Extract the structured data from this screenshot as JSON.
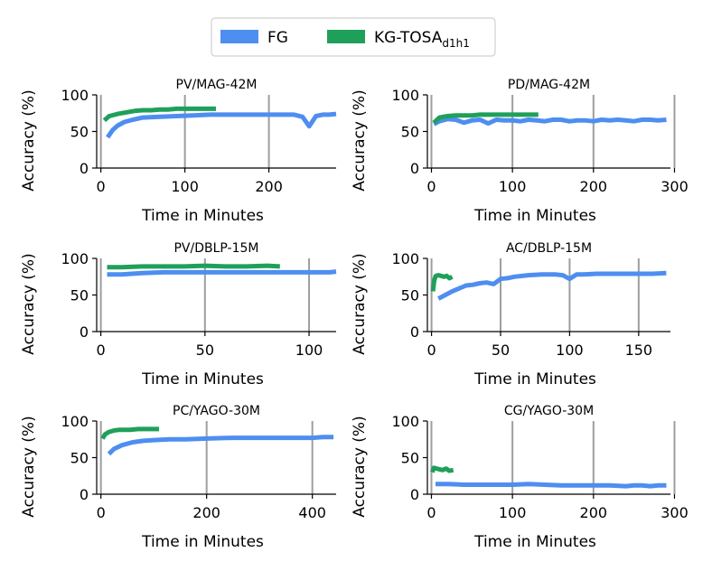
{
  "legend": {
    "fg_label": "FG",
    "kg_label": "KG-TOSA",
    "kg_label_sub": "d1h1",
    "fg_color": "#4e8ef0",
    "kg_color": "#1fa05a"
  },
  "chart_data": [
    {
      "type": "line",
      "title": "PV/MAG-42M",
      "xlabel": "Time in Minutes",
      "ylabel": "Accuracy (%)",
      "xlim": [
        -5,
        280
      ],
      "ylim": [
        0,
        100
      ],
      "xticks": [
        0,
        100,
        200
      ],
      "yticks": [
        0,
        50,
        100
      ],
      "grid": "vertical",
      "series": [
        {
          "name": "FG",
          "x": [
            8,
            14,
            20,
            28,
            38,
            50,
            70,
            90,
            110,
            130,
            150,
            170,
            190,
            210,
            230,
            240,
            248,
            256,
            264,
            272,
            280
          ],
          "y": [
            42,
            52,
            58,
            63,
            66,
            69,
            70,
            71,
            72,
            73,
            73,
            73,
            73,
            73,
            73,
            70,
            57,
            71,
            73,
            73,
            74
          ]
        },
        {
          "name": "KG-TOSA",
          "x": [
            4,
            10,
            20,
            30,
            40,
            50,
            60,
            70,
            80,
            90,
            100,
            110,
            120,
            130,
            137
          ],
          "y": [
            65,
            71,
            74,
            76,
            78,
            79,
            79,
            80,
            80,
            81,
            81,
            81,
            81,
            81,
            81
          ]
        }
      ]
    },
    {
      "type": "line",
      "title": "PD/MAG-42M",
      "xlabel": "Time in Minutes",
      "ylabel": "Accuracy (%)",
      "xlim": [
        -5,
        295
      ],
      "ylim": [
        0,
        100
      ],
      "xticks": [
        0,
        100,
        200,
        300
      ],
      "yticks": [
        0,
        50,
        100
      ],
      "grid": "vertical",
      "series": [
        {
          "name": "FG",
          "x": [
            3,
            10,
            20,
            30,
            40,
            50,
            60,
            70,
            80,
            90,
            100,
            110,
            120,
            130,
            140,
            150,
            160,
            170,
            180,
            190,
            200,
            210,
            220,
            230,
            240,
            250,
            260,
            270,
            280,
            290
          ],
          "y": [
            60,
            64,
            67,
            66,
            62,
            65,
            66,
            61,
            66,
            65,
            65,
            64,
            66,
            65,
            64,
            66,
            66,
            64,
            65,
            65,
            64,
            66,
            65,
            66,
            65,
            64,
            66,
            66,
            65,
            66
          ]
        },
        {
          "name": "KG-TOSA",
          "x": [
            3,
            10,
            20,
            30,
            40,
            50,
            60,
            70,
            80,
            90,
            100,
            110,
            120,
            132
          ],
          "y": [
            62,
            69,
            71,
            72,
            72,
            72,
            73,
            73,
            73,
            73,
            73,
            73,
            73,
            73
          ]
        }
      ]
    },
    {
      "type": "line",
      "title": "PV/DBLP-15M",
      "xlabel": "Time in Minutes",
      "ylabel": "Accuracy (%)",
      "xlim": [
        -2,
        113
      ],
      "ylim": [
        0,
        100
      ],
      "xticks": [
        0,
        50,
        100
      ],
      "yticks": [
        0,
        50,
        100
      ],
      "grid": "vertical",
      "series": [
        {
          "name": "FG",
          "x": [
            3,
            10,
            20,
            30,
            40,
            50,
            60,
            70,
            80,
            90,
            100,
            110,
            113
          ],
          "y": [
            78,
            78,
            80,
            81,
            81,
            81,
            81,
            81,
            81,
            81,
            81,
            81,
            82
          ]
        },
        {
          "name": "KG-TOSA",
          "x": [
            3,
            10,
            20,
            30,
            40,
            50,
            60,
            70,
            80,
            86
          ],
          "y": [
            88,
            88,
            89,
            89,
            89,
            90,
            89,
            89,
            90,
            89
          ]
        }
      ]
    },
    {
      "type": "line",
      "title": "AC/DBLP-15M",
      "xlabel": "Time in Minutes",
      "ylabel": "Accuracy (%)",
      "xlim": [
        -3,
        173
      ],
      "ylim": [
        0,
        100
      ],
      "xticks": [
        0,
        50,
        100,
        150
      ],
      "yticks": [
        0,
        50,
        100
      ],
      "grid": "vertical",
      "series": [
        {
          "name": "FG",
          "x": [
            5,
            10,
            15,
            20,
            25,
            30,
            35,
            40,
            45,
            50,
            55,
            60,
            70,
            80,
            90,
            95,
            100,
            105,
            110,
            120,
            130,
            140,
            150,
            160,
            170
          ],
          "y": [
            45,
            50,
            55,
            59,
            63,
            64,
            66,
            67,
            65,
            72,
            73,
            75,
            77,
            78,
            78,
            77,
            72,
            78,
            78,
            79,
            79,
            79,
            79,
            79,
            80
          ]
        },
        {
          "name": "KG-TOSA",
          "x": [
            1,
            2,
            3,
            5,
            7,
            9,
            11,
            13,
            15
          ],
          "y": [
            55,
            70,
            76,
            77,
            76,
            75,
            76,
            73,
            75
          ]
        }
      ]
    },
    {
      "type": "line",
      "title": "PC/YAGO-30M",
      "xlabel": "Time in Minutes",
      "ylabel": "Accuracy (%)",
      "xlim": [
        -8,
        445
      ],
      "ylim": [
        0,
        100
      ],
      "xticks": [
        0,
        200,
        400
      ],
      "yticks": [
        0,
        50,
        100
      ],
      "grid": "vertical",
      "series": [
        {
          "name": "FG",
          "x": [
            15,
            25,
            40,
            60,
            80,
            100,
            130,
            160,
            200,
            250,
            300,
            350,
            400,
            420,
            440
          ],
          "y": [
            55,
            62,
            67,
            71,
            73,
            74,
            75,
            75,
            76,
            77,
            77,
            77,
            77,
            78,
            78
          ]
        },
        {
          "name": "KG-TOSA",
          "x": [
            3,
            8,
            15,
            25,
            35,
            45,
            55,
            70,
            85,
            100,
            110
          ],
          "y": [
            76,
            82,
            85,
            87,
            88,
            88,
            88,
            89,
            89,
            89,
            89
          ]
        }
      ]
    },
    {
      "type": "line",
      "title": "CG/YAGO-30M",
      "xlabel": "Time in Minutes",
      "ylabel": "Accuracy (%)",
      "xlim": [
        -5,
        295
      ],
      "ylim": [
        0,
        100
      ],
      "xticks": [
        0,
        100,
        200,
        300
      ],
      "yticks": [
        0,
        50,
        100
      ],
      "grid": "vertical",
      "series": [
        {
          "name": "FG",
          "x": [
            5,
            20,
            40,
            60,
            80,
            100,
            120,
            140,
            160,
            180,
            200,
            220,
            240,
            250,
            260,
            270,
            280,
            290
          ],
          "y": [
            14,
            14,
            13,
            13,
            13,
            13,
            14,
            13,
            12,
            12,
            12,
            12,
            11,
            12,
            12,
            11,
            12,
            12
          ]
        },
        {
          "name": "KG-TOSA",
          "x": [
            1,
            3,
            6,
            10,
            14,
            18,
            22,
            27
          ],
          "y": [
            30,
            36,
            35,
            34,
            33,
            35,
            32,
            33
          ]
        }
      ]
    }
  ]
}
